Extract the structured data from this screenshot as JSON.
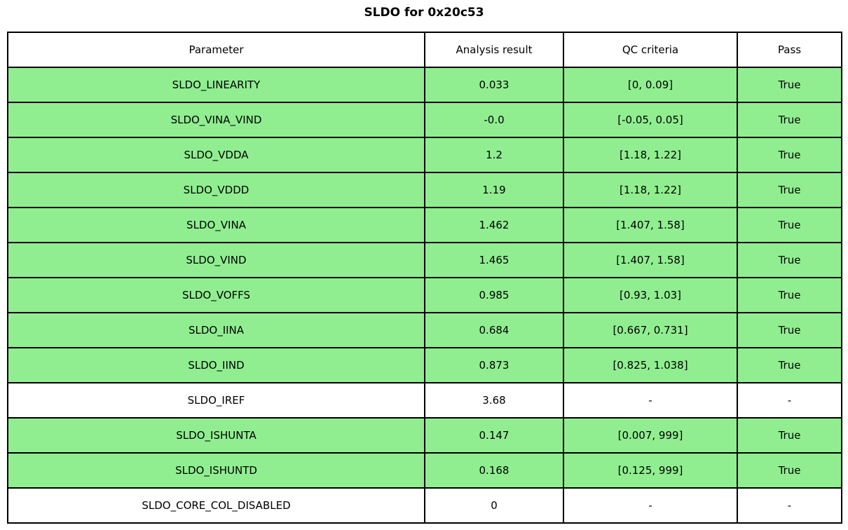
{
  "title": "SLDO for 0x20c53",
  "colors": {
    "pass_green": "#90ee90",
    "neutral_white": "#ffffff",
    "border_black": "#000000"
  },
  "table": {
    "headers": [
      "Parameter",
      "Analysis result",
      "QC criteria",
      "Pass"
    ],
    "rows": [
      {
        "parameter": "SLDO_LINEARITY",
        "analysis_result": "0.033",
        "qc_criteria": "[0, 0.09]",
        "pass": "True",
        "highlighted": true
      },
      {
        "parameter": "SLDO_VINA_VIND",
        "analysis_result": "-0.0",
        "qc_criteria": "[-0.05, 0.05]",
        "pass": "True",
        "highlighted": true
      },
      {
        "parameter": "SLDO_VDDA",
        "analysis_result": "1.2",
        "qc_criteria": "[1.18, 1.22]",
        "pass": "True",
        "highlighted": true
      },
      {
        "parameter": "SLDO_VDDD",
        "analysis_result": "1.19",
        "qc_criteria": "[1.18, 1.22]",
        "pass": "True",
        "highlighted": true
      },
      {
        "parameter": "SLDO_VINA",
        "analysis_result": "1.462",
        "qc_criteria": "[1.407, 1.58]",
        "pass": "True",
        "highlighted": true
      },
      {
        "parameter": "SLDO_VIND",
        "analysis_result": "1.465",
        "qc_criteria": "[1.407, 1.58]",
        "pass": "True",
        "highlighted": true
      },
      {
        "parameter": "SLDO_VOFFS",
        "analysis_result": "0.985",
        "qc_criteria": "[0.93, 1.03]",
        "pass": "True",
        "highlighted": true
      },
      {
        "parameter": "SLDO_IINA",
        "analysis_result": "0.684",
        "qc_criteria": "[0.667, 0.731]",
        "pass": "True",
        "highlighted": true
      },
      {
        "parameter": "SLDO_IIND",
        "analysis_result": "0.873",
        "qc_criteria": "[0.825, 1.038]",
        "pass": "True",
        "highlighted": true
      },
      {
        "parameter": "SLDO_IREF",
        "analysis_result": "3.68",
        "qc_criteria": "-",
        "pass": "-",
        "highlighted": false
      },
      {
        "parameter": "SLDO_ISHUNTA",
        "analysis_result": "0.147",
        "qc_criteria": "[0.007, 999]",
        "pass": "True",
        "highlighted": true
      },
      {
        "parameter": "SLDO_ISHUNTD",
        "analysis_result": "0.168",
        "qc_criteria": "[0.125, 999]",
        "pass": "True",
        "highlighted": true
      },
      {
        "parameter": "SLDO_CORE_COL_DISABLED",
        "analysis_result": "0",
        "qc_criteria": "-",
        "pass": "-",
        "highlighted": false
      }
    ]
  }
}
